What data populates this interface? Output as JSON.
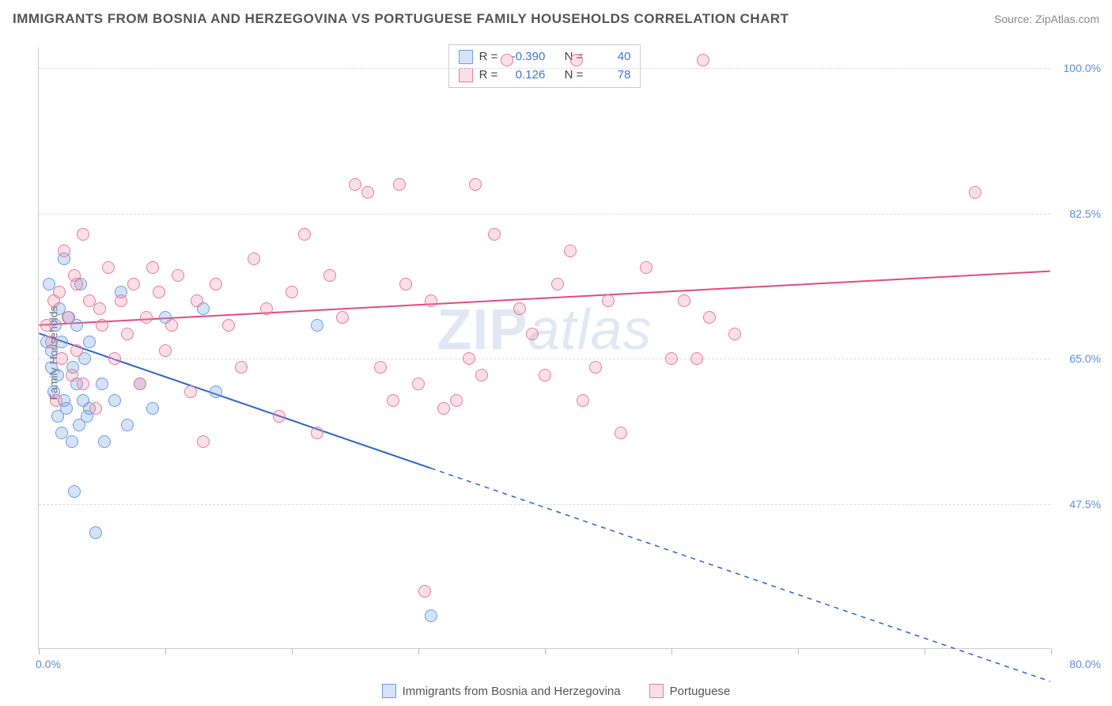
{
  "title": "IMMIGRANTS FROM BOSNIA AND HERZEGOVINA VS PORTUGUESE FAMILY HOUSEHOLDS CORRELATION CHART",
  "source": "Source: ZipAtlas.com",
  "y_axis_label": "Family Households",
  "watermark_a": "ZIP",
  "watermark_b": "atlas",
  "chart": {
    "type": "scatter",
    "xlim": [
      0,
      80
    ],
    "ylim": [
      30,
      102.5
    ],
    "x_min_label": "0.0%",
    "x_max_label": "80.0%",
    "y_grid": [
      {
        "value": 47.5,
        "label": "47.5%"
      },
      {
        "value": 65.0,
        "label": "65.0%"
      },
      {
        "value": 82.5,
        "label": "82.5%"
      },
      {
        "value": 100.0,
        "label": "100.0%"
      }
    ],
    "x_ticks": [
      0,
      10,
      20,
      30,
      40,
      50,
      60,
      70,
      80
    ],
    "point_radius": 8,
    "background_color": "#ffffff",
    "grid_color": "#dddddd",
    "axis_color": "#cccccc"
  },
  "series": [
    {
      "key": "bosnia",
      "label": "Immigrants from Bosnia and Herzegovina",
      "fill": "rgba(120,163,224,0.30)",
      "stroke": "#6d9de0",
      "R_label": "R =",
      "R": "-0.390",
      "N_label": "N =",
      "N": "40",
      "trend": {
        "y_at_x0": 68,
        "y_at_xmax": 26,
        "solid_until_x": 31,
        "color": "#2e63c9",
        "width": 2
      },
      "points": [
        [
          0.6,
          67
        ],
        [
          0.8,
          74
        ],
        [
          1.0,
          64
        ],
        [
          1.0,
          66
        ],
        [
          1.2,
          61
        ],
        [
          1.3,
          69
        ],
        [
          1.5,
          58
        ],
        [
          1.5,
          63
        ],
        [
          1.6,
          71
        ],
        [
          1.8,
          56
        ],
        [
          1.8,
          67
        ],
        [
          2.0,
          60
        ],
        [
          2.0,
          77
        ],
        [
          2.2,
          59
        ],
        [
          2.4,
          70
        ],
        [
          2.6,
          55
        ],
        [
          2.7,
          64
        ],
        [
          2.8,
          49
        ],
        [
          3.0,
          62
        ],
        [
          3.0,
          69
        ],
        [
          3.2,
          57
        ],
        [
          3.3,
          74
        ],
        [
          3.5,
          60
        ],
        [
          3.6,
          65
        ],
        [
          3.8,
          58
        ],
        [
          4.0,
          59
        ],
        [
          4.0,
          67
        ],
        [
          4.5,
          44
        ],
        [
          5.0,
          62
        ],
        [
          5.2,
          55
        ],
        [
          6.0,
          60
        ],
        [
          6.5,
          73
        ],
        [
          7.0,
          57
        ],
        [
          8.0,
          62
        ],
        [
          9.0,
          59
        ],
        [
          10.0,
          70
        ],
        [
          13.0,
          71
        ],
        [
          14.0,
          61
        ],
        [
          22.0,
          69
        ],
        [
          31.0,
          34
        ]
      ]
    },
    {
      "key": "portuguese",
      "label": "Portuguese",
      "fill": "rgba(236,140,166,0.28)",
      "stroke": "#e77b9e",
      "R_label": "R =",
      "R": "0.126",
      "N_label": "N =",
      "N": "78",
      "trend": {
        "y_at_x0": 69,
        "y_at_xmax": 75.5,
        "solid_until_x": 80,
        "color": "#e34b7d",
        "width": 2
      },
      "points": [
        [
          0.6,
          69
        ],
        [
          1.0,
          67
        ],
        [
          1.2,
          72
        ],
        [
          1.4,
          60
        ],
        [
          1.6,
          73
        ],
        [
          1.8,
          65
        ],
        [
          2.0,
          78
        ],
        [
          2.3,
          70
        ],
        [
          2.6,
          63
        ],
        [
          2.8,
          75
        ],
        [
          3.0,
          74
        ],
        [
          3.0,
          66
        ],
        [
          3.5,
          80
        ],
        [
          3.5,
          62
        ],
        [
          4.0,
          72
        ],
        [
          4.5,
          59
        ],
        [
          4.8,
          71
        ],
        [
          5.0,
          69
        ],
        [
          5.5,
          76
        ],
        [
          6.0,
          65
        ],
        [
          6.5,
          72
        ],
        [
          7.0,
          68
        ],
        [
          7.5,
          74
        ],
        [
          8.0,
          62
        ],
        [
          8.5,
          70
        ],
        [
          9.0,
          76
        ],
        [
          9.5,
          73
        ],
        [
          10.0,
          66
        ],
        [
          10.5,
          69
        ],
        [
          11.0,
          75
        ],
        [
          12.0,
          61
        ],
        [
          12.5,
          72
        ],
        [
          13.0,
          55
        ],
        [
          14.0,
          74
        ],
        [
          15.0,
          69
        ],
        [
          16.0,
          64
        ],
        [
          17.0,
          77
        ],
        [
          18.0,
          71
        ],
        [
          19.0,
          58
        ],
        [
          20.0,
          73
        ],
        [
          21.0,
          80
        ],
        [
          22.0,
          56
        ],
        [
          23.0,
          75
        ],
        [
          24.0,
          70
        ],
        [
          25.0,
          86
        ],
        [
          26.0,
          85
        ],
        [
          27.0,
          64
        ],
        [
          28.0,
          60
        ],
        [
          28.5,
          86
        ],
        [
          29.0,
          74
        ],
        [
          30.0,
          62
        ],
        [
          30.5,
          37
        ],
        [
          31.0,
          72
        ],
        [
          32.0,
          59
        ],
        [
          33.0,
          60
        ],
        [
          34.0,
          65
        ],
        [
          34.5,
          86
        ],
        [
          35.0,
          63
        ],
        [
          36.0,
          80
        ],
        [
          37.0,
          101
        ],
        [
          38.0,
          71
        ],
        [
          39.0,
          68
        ],
        [
          40.0,
          63
        ],
        [
          41.0,
          74
        ],
        [
          42.0,
          78
        ],
        [
          42.5,
          101
        ],
        [
          43.0,
          60
        ],
        [
          44.0,
          64
        ],
        [
          45.0,
          72
        ],
        [
          46.0,
          56
        ],
        [
          48.0,
          76
        ],
        [
          50.0,
          65
        ],
        [
          51.0,
          72
        ],
        [
          52.0,
          65
        ],
        [
          52.5,
          101
        ],
        [
          53.0,
          70
        ],
        [
          55.0,
          68
        ],
        [
          74.0,
          85
        ]
      ]
    }
  ]
}
